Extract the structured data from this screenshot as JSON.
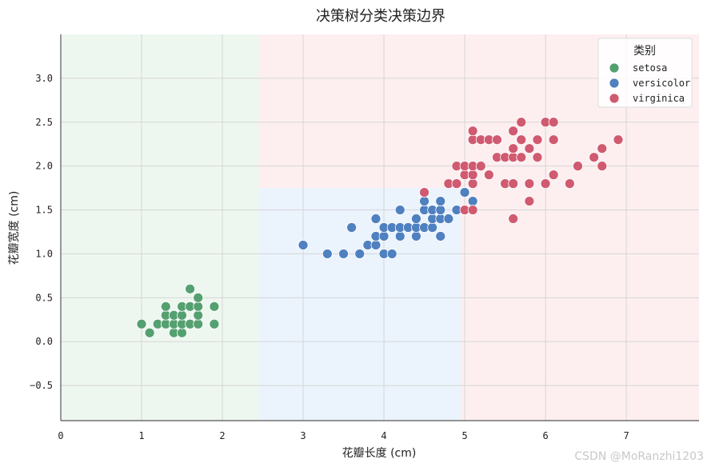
{
  "watermark": "CSDN @MoRanzhi1203",
  "chart_data": {
    "type": "scatter",
    "title": "决策树分类决策边界",
    "xlabel": "花瓣长度 (cm)",
    "ylabel": "花瓣宽度 (cm)",
    "xlim": [
      0,
      7.9
    ],
    "ylim": [
      -0.9,
      3.5
    ],
    "xticks": [
      0,
      1,
      2,
      3,
      4,
      5,
      6,
      7
    ],
    "yticks": [
      -0.5,
      0.0,
      0.5,
      1.0,
      1.5,
      2.0,
      2.5,
      3.0
    ],
    "ytick_labels": [
      "−0.5",
      "0.0",
      "0.5",
      "1.0",
      "1.5",
      "2.0",
      "2.5",
      "3.0"
    ],
    "grid": true,
    "legend": {
      "title": "类别",
      "position": "top-right"
    },
    "regions": [
      {
        "class": "setosa",
        "x": [
          0,
          2.45
        ],
        "y": [
          -0.9,
          3.5
        ],
        "color": "#eef7ef"
      },
      {
        "class": "virginica",
        "x": [
          2.45,
          7.9
        ],
        "y": [
          1.75,
          3.5
        ],
        "color": "#fdeff0"
      },
      {
        "class": "versicolor",
        "x": [
          2.45,
          4.95
        ],
        "y": [
          -0.9,
          1.75
        ],
        "color": "#ebf3fd"
      },
      {
        "class": "virginica",
        "x": [
          4.95,
          7.9
        ],
        "y": [
          -0.9,
          1.75
        ],
        "color": "#fdeff0"
      }
    ],
    "series": [
      {
        "name": "setosa",
        "color": "#55a070",
        "points": [
          [
            1.0,
            0.2
          ],
          [
            1.1,
            0.1
          ],
          [
            1.2,
            0.2
          ],
          [
            1.3,
            0.2
          ],
          [
            1.3,
            0.3
          ],
          [
            1.3,
            0.4
          ],
          [
            1.4,
            0.1
          ],
          [
            1.4,
            0.2
          ],
          [
            1.4,
            0.3
          ],
          [
            1.5,
            0.1
          ],
          [
            1.5,
            0.2
          ],
          [
            1.5,
            0.3
          ],
          [
            1.5,
            0.4
          ],
          [
            1.6,
            0.2
          ],
          [
            1.6,
            0.4
          ],
          [
            1.6,
            0.6
          ],
          [
            1.7,
            0.2
          ],
          [
            1.7,
            0.3
          ],
          [
            1.7,
            0.4
          ],
          [
            1.7,
            0.5
          ],
          [
            1.9,
            0.2
          ],
          [
            1.9,
            0.4
          ]
        ]
      },
      {
        "name": "versicolor",
        "color": "#4f80c0",
        "points": [
          [
            3.0,
            1.1
          ],
          [
            3.3,
            1.0
          ],
          [
            3.5,
            1.0
          ],
          [
            3.6,
            1.3
          ],
          [
            3.7,
            1.0
          ],
          [
            3.8,
            1.1
          ],
          [
            3.9,
            1.1
          ],
          [
            3.9,
            1.2
          ],
          [
            3.9,
            1.4
          ],
          [
            4.0,
            1.0
          ],
          [
            4.0,
            1.2
          ],
          [
            4.0,
            1.3
          ],
          [
            4.1,
            1.0
          ],
          [
            4.1,
            1.3
          ],
          [
            4.2,
            1.2
          ],
          [
            4.2,
            1.3
          ],
          [
            4.2,
            1.5
          ],
          [
            4.3,
            1.3
          ],
          [
            4.4,
            1.2
          ],
          [
            4.4,
            1.3
          ],
          [
            4.4,
            1.4
          ],
          [
            4.5,
            1.3
          ],
          [
            4.5,
            1.5
          ],
          [
            4.5,
            1.6
          ],
          [
            4.6,
            1.3
          ],
          [
            4.6,
            1.4
          ],
          [
            4.6,
            1.5
          ],
          [
            4.7,
            1.2
          ],
          [
            4.7,
            1.4
          ],
          [
            4.7,
            1.5
          ],
          [
            4.7,
            1.6
          ],
          [
            4.8,
            1.4
          ],
          [
            4.9,
            1.5
          ],
          [
            5.0,
            1.7
          ],
          [
            5.1,
            1.6
          ]
        ]
      },
      {
        "name": "virginica",
        "color": "#d05a70",
        "points": [
          [
            4.5,
            1.7
          ],
          [
            4.8,
            1.8
          ],
          [
            4.9,
            1.8
          ],
          [
            4.9,
            2.0
          ],
          [
            5.0,
            1.5
          ],
          [
            5.0,
            1.9
          ],
          [
            5.0,
            2.0
          ],
          [
            5.1,
            1.5
          ],
          [
            5.1,
            1.8
          ],
          [
            5.1,
            1.9
          ],
          [
            5.1,
            2.0
          ],
          [
            5.1,
            2.3
          ],
          [
            5.1,
            2.4
          ],
          [
            5.2,
            2.0
          ],
          [
            5.2,
            2.3
          ],
          [
            5.3,
            1.9
          ],
          [
            5.3,
            2.3
          ],
          [
            5.4,
            2.1
          ],
          [
            5.4,
            2.3
          ],
          [
            5.5,
            1.8
          ],
          [
            5.5,
            2.1
          ],
          [
            5.6,
            1.4
          ],
          [
            5.6,
            1.8
          ],
          [
            5.6,
            2.1
          ],
          [
            5.6,
            2.2
          ],
          [
            5.6,
            2.4
          ],
          [
            5.7,
            2.1
          ],
          [
            5.7,
            2.3
          ],
          [
            5.7,
            2.5
          ],
          [
            5.8,
            1.6
          ],
          [
            5.8,
            1.8
          ],
          [
            5.8,
            2.2
          ],
          [
            5.9,
            2.1
          ],
          [
            5.9,
            2.3
          ],
          [
            6.0,
            1.8
          ],
          [
            6.0,
            2.5
          ],
          [
            6.1,
            1.9
          ],
          [
            6.1,
            2.3
          ],
          [
            6.1,
            2.5
          ],
          [
            6.3,
            1.8
          ],
          [
            6.4,
            2.0
          ],
          [
            6.6,
            2.1
          ],
          [
            6.7,
            2.0
          ],
          [
            6.7,
            2.2
          ],
          [
            6.9,
            2.3
          ]
        ]
      }
    ]
  }
}
